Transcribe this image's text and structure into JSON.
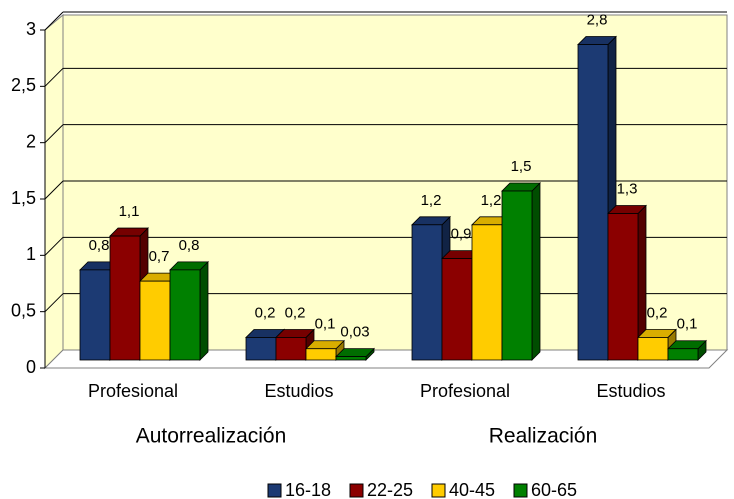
{
  "chart_data": {
    "type": "bar3d",
    "groups": [
      {
        "name": "Autorrealización",
        "categories": [
          "Profesional",
          "Estudios"
        ]
      },
      {
        "name": "Realización",
        "categories": [
          "Profesional",
          "Estudios"
        ]
      }
    ],
    "series": [
      {
        "name": "16-18",
        "color": "#1c3a73",
        "values": [
          0.8,
          0.2,
          1.2,
          2.8
        ],
        "value_labels": [
          "0,8",
          "0,2",
          "1,2",
          "2,8"
        ]
      },
      {
        "name": "22-25",
        "color": "#8b0000",
        "values": [
          1.1,
          0.2,
          0.9,
          1.3
        ],
        "value_labels": [
          "1,1",
          "0,2",
          "0,9",
          "1,3"
        ]
      },
      {
        "name": "40-45",
        "color": "#ffcc00",
        "values": [
          0.7,
          0.1,
          1.2,
          0.2
        ],
        "value_labels": [
          "0,7",
          "0,1",
          "1,2",
          "0,2"
        ]
      },
      {
        "name": "60-65",
        "color": "#008000",
        "values": [
          0.8,
          0.03,
          1.5,
          0.1
        ],
        "value_labels": [
          "0,8",
          "0,03",
          "1,5",
          "0,1"
        ]
      }
    ],
    "ylim": [
      0,
      3
    ],
    "yticks": [
      0,
      {
        "value": 0.5,
        "label": "0,5"
      },
      1,
      {
        "value": 1.5,
        "label": "1,5"
      },
      2,
      {
        "value": 2.5,
        "label": "2,5"
      },
      3
    ],
    "grid": true,
    "legend": "bottom"
  }
}
